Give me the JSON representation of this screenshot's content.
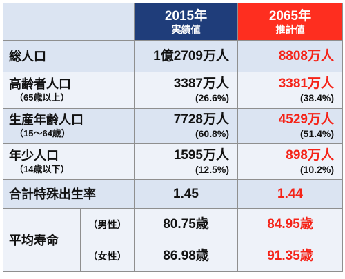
{
  "header": {
    "col2015_year": "2015年",
    "col2015_sub": "実績値",
    "col2065_year": "2065年",
    "col2065_sub": "推計値"
  },
  "rows": {
    "total": {
      "label": "総人口",
      "v2015": "1億2709万人",
      "v2065": "8808万人"
    },
    "elderly": {
      "label": "高齢者人口",
      "sub": "（65歳以上）",
      "v2015": "3387万人",
      "p2015": "(26.6%)",
      "v2065": "3381万人",
      "p2065": "(38.4%)"
    },
    "working": {
      "label": "生産年齢人口",
      "sub": "（15〜64歳）",
      "v2015": "7728万人",
      "p2015": "(60.8%)",
      "v2065": "4529万人",
      "p2065": "(51.4%)"
    },
    "young": {
      "label": "年少人口",
      "sub": "（14歳以下）",
      "v2015": "1595万人",
      "p2015": "(12.5%)",
      "v2065": "898万人",
      "p2065": "(10.2%)"
    },
    "fertility": {
      "label": "合計特殊出生率",
      "v2015": "1.45",
      "v2065": "1.44"
    },
    "lifespan": {
      "label": "平均寿命",
      "male_label": "（男性）",
      "male_2015": "80.75歳",
      "male_2065": "84.95歳",
      "female_label": "（女性）",
      "female_2015": "86.98歳",
      "female_2065": "91.35歳"
    }
  },
  "colors": {
    "header_2015": "#1f3d7a",
    "header_2065": "#fe2e1f",
    "text_2065": "#f52318",
    "row_dark": "#dbe4f2",
    "row_light": "#eef2f9"
  }
}
